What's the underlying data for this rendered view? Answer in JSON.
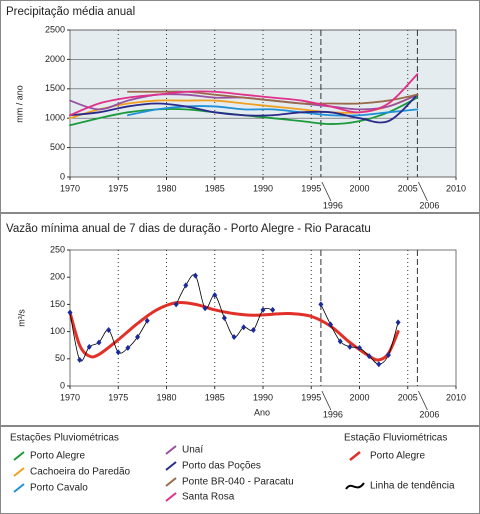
{
  "chart_data": [
    {
      "type": "line",
      "title": "Precipitação média anual",
      "y_label": "mm / ano",
      "xlim": [
        1970,
        2010
      ],
      "xticks": [
        1970,
        1975,
        1980,
        1985,
        1990,
        1995,
        2000,
        2005,
        2010
      ],
      "ylim": [
        0,
        2500
      ],
      "yticks": [
        0,
        500,
        1000,
        1500,
        2000,
        2500
      ],
      "grid": true,
      "vgrid": true,
      "background": "#e4ecf0",
      "annotations": [
        {
          "x": 1996,
          "text": "1996"
        },
        {
          "x": 2006,
          "text": "2006"
        }
      ],
      "legend_title": "Estações Pluviométricas",
      "x": [
        1970,
        1973,
        1976,
        1979,
        1982,
        1985,
        1988,
        1991,
        1994,
        1997,
        2000,
        2003,
        2006
      ],
      "series": [
        {
          "name": "Porto Alegre",
          "color": "#1a9a3a",
          "values": [
            880,
            1000,
            1100,
            1150,
            1150,
            1100,
            1050,
            1000,
            950,
            900,
            950,
            1100,
            1350
          ]
        },
        {
          "name": "Cachoeira do Paredão",
          "color": "#f0a020",
          "values": [
            1000,
            1150,
            1250,
            1300,
            1300,
            1300,
            1250,
            1200,
            1150,
            1100,
            1100,
            1200,
            1400
          ]
        },
        {
          "name": "Porto Cavalo",
          "color": "#2090d8",
          "values": [
            null,
            null,
            1050,
            1150,
            1200,
            1200,
            1150,
            1150,
            1100,
            1050,
            1050,
            1100,
            1150
          ]
        },
        {
          "name": "Unaí",
          "color": "#9a50a0",
          "values": [
            1300,
            1150,
            1300,
            1400,
            1400,
            1350,
            1350,
            1300,
            1250,
            1200,
            1150,
            1200,
            1400
          ]
        },
        {
          "name": "Porto das Poções",
          "color": "#2a2a8a",
          "values": [
            1050,
            1100,
            1200,
            1250,
            1200,
            1100,
            1050,
            1050,
            1100,
            1100,
            1000,
            950,
            1400
          ]
        },
        {
          "name": "Ponte BR-040 - Paracatu",
          "color": "#9a6a4a",
          "values": [
            null,
            null,
            1450,
            1450,
            1450,
            1400,
            1350,
            1300,
            1250,
            1250,
            1250,
            1300,
            1400
          ]
        },
        {
          "name": "Santa Rosa",
          "color": "#e0308a",
          "values": [
            1050,
            1250,
            1350,
            1400,
            1450,
            1450,
            1400,
            1350,
            1300,
            1200,
            1100,
            1250,
            1750
          ]
        }
      ]
    },
    {
      "type": "line",
      "title": "Vazão mínima anual de 7 dias de duração - Porto Alegre - Rio Paracatu",
      "y_label": "m³/s",
      "x_label": "Ano",
      "xlim": [
        1970,
        2010
      ],
      "xticks": [
        1970,
        1975,
        1980,
        1985,
        1990,
        1995,
        2000,
        2005,
        2010
      ],
      "ylim": [
        0,
        250
      ],
      "yticks": [
        0,
        50,
        100,
        150,
        200,
        250
      ],
      "grid": false,
      "vgrid": true,
      "background": "#ffffff",
      "annotations": [
        {
          "x": 1996,
          "text": "1996"
        },
        {
          "x": 2006,
          "text": "2006"
        }
      ],
      "legend_title": "Estação Fluviométricas",
      "series": [
        {
          "name": "Porto Alegre",
          "color": "#e03028",
          "width": 3,
          "x": [
            1970,
            1971,
            1972,
            1973,
            1975,
            1977,
            1979,
            1981,
            1983,
            1985,
            1987,
            1989,
            1991,
            1993,
            1995,
            1997,
            1999,
            2001,
            2002,
            2003,
            2004
          ],
          "values": [
            135,
            75,
            55,
            58,
            85,
            115,
            140,
            153,
            150,
            140,
            133,
            130,
            132,
            133,
            128,
            110,
            80,
            55,
            48,
            60,
            100
          ]
        },
        {
          "name": "Linha de tendência",
          "color": "#000000",
          "width": 0.8,
          "marker": "#1a2a9a",
          "x": [
            1970,
            1971,
            1972,
            1973,
            1974,
            1975,
            1976,
            1977,
            1978,
            1979,
            1980,
            1981,
            1982,
            1983,
            1984,
            1985,
            1986,
            1987,
            1988,
            1989,
            1990,
            1991,
            1992,
            1993,
            1994,
            1995,
            1996,
            1997,
            1998,
            1999,
            2000,
            2001,
            2002,
            2003,
            2004
          ],
          "values": [
            135,
            48,
            72,
            80,
            103,
            62,
            70,
            90,
            120,
            null,
            null,
            150,
            185,
            203,
            143,
            167,
            125,
            90,
            108,
            103,
            140,
            140,
            null,
            null,
            null,
            null,
            150,
            113,
            82,
            72,
            70,
            55,
            40,
            57,
            117
          ]
        }
      ]
    }
  ]
}
